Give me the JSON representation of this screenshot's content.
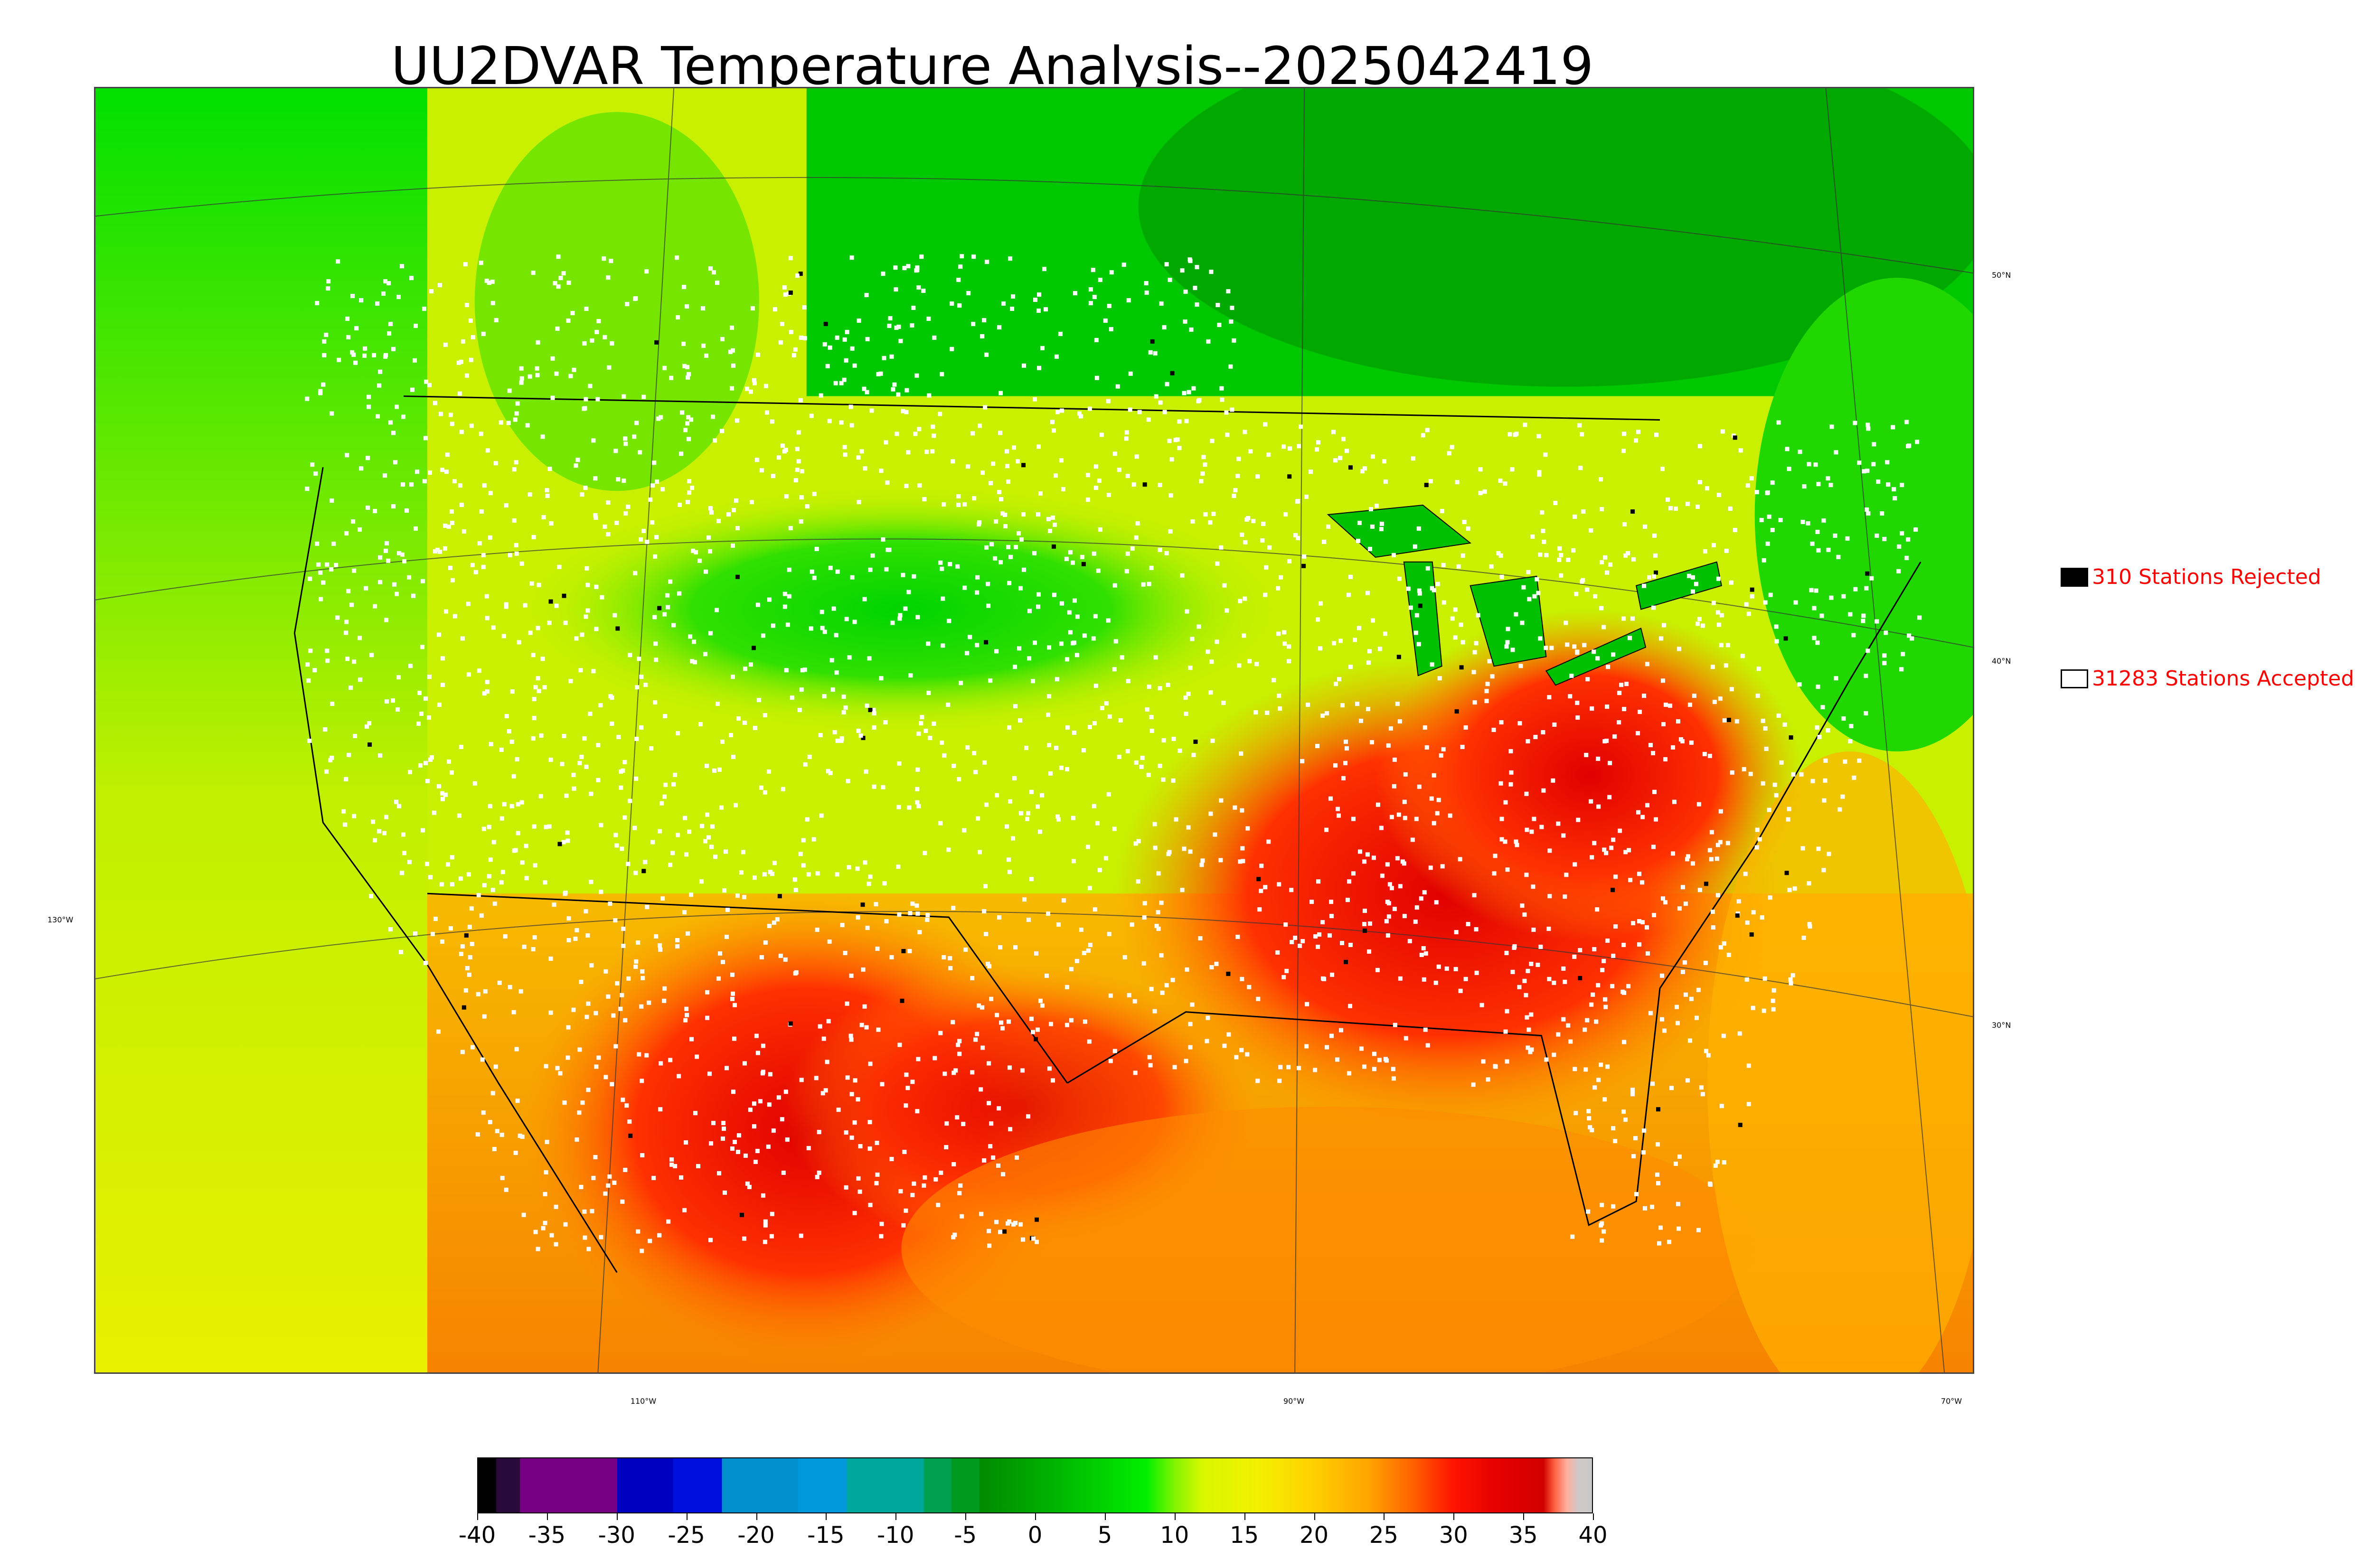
{
  "title": "UU2DVAR Temperature Analysis--2025042419",
  "legend": {
    "rejected": {
      "label": "310 Stations Rejected",
      "swatch_color": "#000000"
    },
    "accepted": {
      "label": "31283 Stations Accepted",
      "swatch_color": "#ffffff"
    }
  },
  "map": {
    "lat_labels": [
      "50°N",
      "40°N",
      "30°N"
    ],
    "lon_labels": [
      "130°W",
      "110°W",
      "90°W",
      "70°W"
    ]
  },
  "colorbar": {
    "tick_labels": [
      "-40",
      "-35",
      "-30",
      "-25",
      "-20",
      "-15",
      "-10",
      "-5",
      "0",
      "5",
      "10",
      "15",
      "20",
      "25",
      "30",
      "35",
      "40"
    ],
    "range": [
      -40,
      40
    ],
    "segments": [
      {
        "from": -40,
        "to": -38.7,
        "color": "#000000"
      },
      {
        "from": -38.7,
        "to": -37,
        "color": "#2a0a3a"
      },
      {
        "from": -37,
        "to": -30,
        "color": "#760082"
      },
      {
        "from": -30,
        "to": -26,
        "color": "#0000c0"
      },
      {
        "from": -26,
        "to": -22.5,
        "color": "#0010dc"
      },
      {
        "from": -22.5,
        "to": -17,
        "color": "#0090d0"
      },
      {
        "from": -17,
        "to": -13.5,
        "color": "#0098d8"
      },
      {
        "from": -13.5,
        "to": -8,
        "color": "#00a89c"
      },
      {
        "from": -8,
        "to": -6,
        "color": "#00a050"
      },
      {
        "from": -6,
        "to": -4,
        "color": "#009a1e"
      }
    ],
    "gradient_stops": [
      {
        "value": -4,
        "color": "#008a00"
      },
      {
        "value": 0,
        "color": "#00a800"
      },
      {
        "value": 5,
        "color": "#00d400"
      },
      {
        "value": 8,
        "color": "#00f000"
      },
      {
        "value": 10,
        "color": "#80f400"
      },
      {
        "value": 12,
        "color": "#d8f800"
      },
      {
        "value": 16,
        "color": "#f4f000"
      },
      {
        "value": 20,
        "color": "#ffd000"
      },
      {
        "value": 24,
        "color": "#ffa400"
      },
      {
        "value": 27,
        "color": "#ff6400"
      },
      {
        "value": 30,
        "color": "#ff1400"
      },
      {
        "value": 33,
        "color": "#e80000"
      },
      {
        "value": 36.5,
        "color": "#d00000"
      },
      {
        "value": 37.3,
        "color": "#ff6040"
      },
      {
        "value": 38.2,
        "color": "#ffb0a0"
      },
      {
        "value": 39,
        "color": "#d0c8c8"
      },
      {
        "value": 40,
        "color": "#c8c8c8"
      }
    ]
  }
}
